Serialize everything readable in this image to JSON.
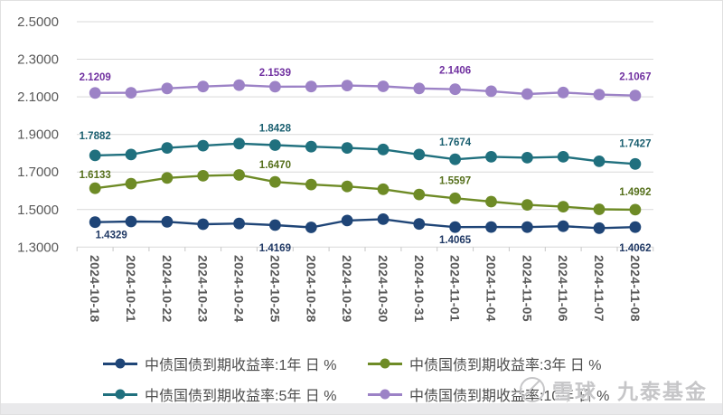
{
  "watermark": {
    "brand": "雪球",
    "account": "九泰基金"
  },
  "chart_data": {
    "type": "line",
    "categories": [
      "2024-10-18",
      "2024-10-21",
      "2024-10-22",
      "2024-10-23",
      "2024-10-24",
      "2024-10-25",
      "2024-10-28",
      "2024-10-29",
      "2024-10-30",
      "2024-10-31",
      "2024-11-01",
      "2024-11-04",
      "2024-11-05",
      "2024-11-06",
      "2024-11-07",
      "2024-11-08"
    ],
    "ylim": [
      1.3,
      2.5
    ],
    "ytick_step": 0.2,
    "ytick_decimals": 4,
    "grid": "horizontal-only",
    "legend_position": "bottom",
    "axis_text_color": "#595959",
    "grid_color": "#D9D9D9",
    "series": [
      {
        "name": "中债国债到期收益率:1年 日 %",
        "color": "#1F4577",
        "label_color": "#1F3864",
        "values": [
          1.4329,
          1.436,
          1.435,
          1.422,
          1.4255,
          1.4169,
          1.405,
          1.4415,
          1.4485,
          1.423,
          1.4065,
          1.4068,
          1.4062,
          1.411,
          1.401,
          1.4062
        ],
        "point_labels": [
          {
            "i": 0,
            "text": "1.4329",
            "pos": "below",
            "dx": 18,
            "dy": 18
          },
          {
            "i": 5,
            "text": "1.4169",
            "pos": "below",
            "dy": 29
          },
          {
            "i": 10,
            "text": "1.4065",
            "pos": "below",
            "dy": 18
          },
          {
            "i": 15,
            "text": "1.4062",
            "pos": "below",
            "dy": 27
          }
        ]
      },
      {
        "name": "中债国债到期收益率:3年 日 %",
        "color": "#6E8B26",
        "label_color": "#56701C",
        "values": [
          1.6133,
          1.638,
          1.668,
          1.68,
          1.684,
          1.647,
          1.633,
          1.623,
          1.608,
          1.58,
          1.5597,
          1.542,
          1.525,
          1.515,
          1.501,
          1.4992
        ],
        "point_labels": [
          {
            "i": 0,
            "text": "1.6133",
            "pos": "above",
            "dy": -11
          },
          {
            "i": 5,
            "text": "1.6470",
            "pos": "above",
            "dy": -15
          },
          {
            "i": 10,
            "text": "1.5597",
            "pos": "above",
            "dy": -16
          },
          {
            "i": 15,
            "text": "1.4992",
            "pos": "above",
            "dy": -16
          }
        ]
      },
      {
        "name": "中债国债到期收益率:5年 日 %",
        "color": "#20707E",
        "label_color": "#1A5F70",
        "values": [
          1.7882,
          1.793,
          1.828,
          1.84,
          1.851,
          1.8428,
          1.835,
          1.828,
          1.82,
          1.793,
          1.7674,
          1.781,
          1.776,
          1.781,
          1.757,
          1.7427
        ],
        "point_labels": [
          {
            "i": 0,
            "text": "1.7882",
            "pos": "above",
            "dy": -18
          },
          {
            "i": 5,
            "text": "1.8428",
            "pos": "above",
            "dy": -15
          },
          {
            "i": 10,
            "text": "1.7674",
            "pos": "above",
            "dy": -15
          },
          {
            "i": 15,
            "text": "1.7427",
            "pos": "above",
            "dy": -19
          }
        ]
      },
      {
        "name": "中债国债到期收益率:10年 日 %",
        "color": "#9C82C6",
        "label_color": "#7030A0",
        "values": [
          2.1209,
          2.1215,
          2.145,
          2.155,
          2.162,
          2.1539,
          2.155,
          2.16,
          2.156,
          2.145,
          2.1406,
          2.13,
          2.115,
          2.123,
          2.112,
          2.1067
        ],
        "point_labels": [
          {
            "i": 0,
            "text": "2.1209",
            "pos": "above",
            "dy": -14
          },
          {
            "i": 5,
            "text": "2.1539",
            "pos": "above",
            "dy": -12
          },
          {
            "i": 10,
            "text": "2.1406",
            "pos": "above",
            "dy": -17
          },
          {
            "i": 15,
            "text": "2.1067",
            "pos": "above",
            "dy": -17
          }
        ]
      }
    ]
  }
}
